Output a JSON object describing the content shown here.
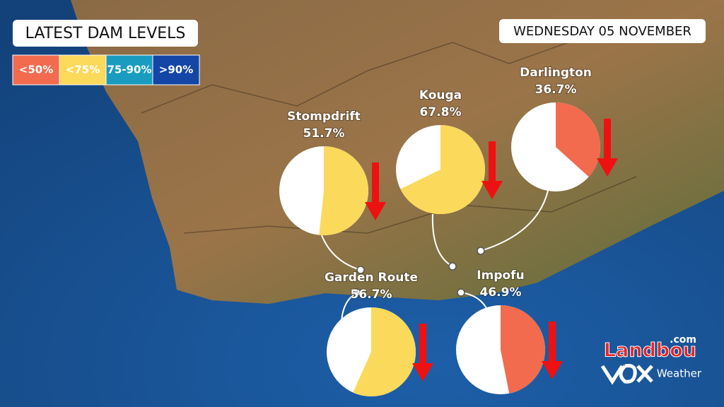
{
  "header": {
    "title": "LATEST DAM LEVELS",
    "date": "WEDNESDAY 05 NOVEMBER"
  },
  "legend": [
    {
      "label": "<50%",
      "color": "#f26b4e"
    },
    {
      "label": "<75%",
      "color": "#fbd95a"
    },
    {
      "label": "75-90%",
      "color": "#1a9cc0"
    },
    {
      "label": ">90%",
      "color": "#1346a6"
    }
  ],
  "dams": [
    {
      "name": "Stompdrift",
      "level": 51.7,
      "level_label": "51.7%",
      "color": "#fbd95a"
    },
    {
      "name": "Kouga",
      "level": 67.8,
      "level_label": "67.8%",
      "color": "#fbd95a"
    },
    {
      "name": "Darlington",
      "level": 36.7,
      "level_label": "36.7%",
      "color": "#f26b4e"
    },
    {
      "name": "Garden Route",
      "level": 56.7,
      "level_label": "56.7%",
      "color": "#fbd95a"
    },
    {
      "name": "Impofu",
      "level": 46.9,
      "level_label": "46.9%",
      "color": "#f26b4e"
    }
  ],
  "branding": {
    "name": "Landbou",
    "suffix": ".com",
    "service": "Weather"
  }
}
